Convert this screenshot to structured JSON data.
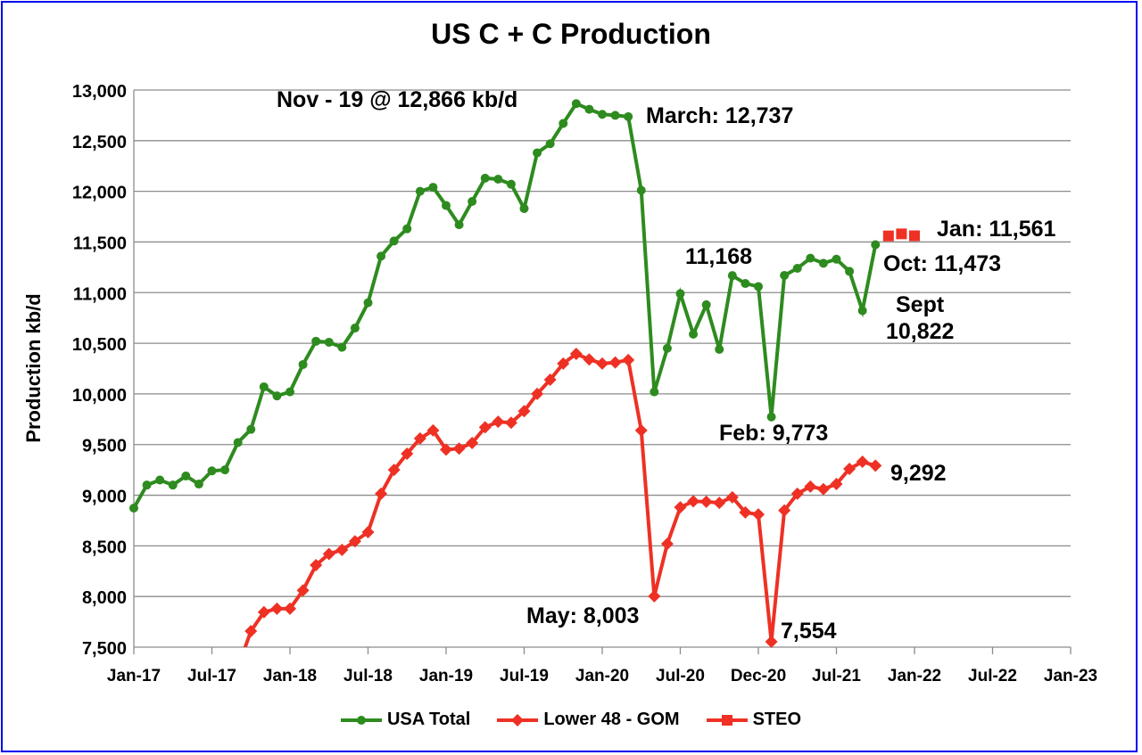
{
  "chart_data": {
    "type": "line",
    "title": "US C + C Production",
    "ylabel": "Production kb/d",
    "xlabel": "",
    "ylim": [
      7500,
      13000
    ],
    "yticks": [
      7500,
      8000,
      8500,
      9000,
      9500,
      10000,
      10500,
      11000,
      11500,
      12000,
      12500,
      13000
    ],
    "ytick_labels": [
      "7,500",
      "8,000",
      "8,500",
      "9,000",
      "9,500",
      "10,000",
      "10,500",
      "11,000",
      "11,500",
      "12,000",
      "12,500",
      "13,000"
    ],
    "xlim": [
      "2017-01",
      "2023-01"
    ],
    "xtick_labels": [
      "Jan-17",
      "Jul-17",
      "Jan-18",
      "Jul-18",
      "Jan-19",
      "Jul-19",
      "Jan-20",
      "Jul-20",
      "Dec-20",
      "Jul-21",
      "Jan-22",
      "Jul-22",
      "Jan-23"
    ],
    "grid": "horizontal",
    "legend_position": "bottom",
    "series": [
      {
        "name": "USA Total",
        "color": "#2e8b1f",
        "marker": "circle",
        "start": "2017-01",
        "values": [
          8873,
          9100,
          9150,
          9100,
          9190,
          9110,
          9240,
          9250,
          9520,
          9650,
          10070,
          9980,
          10020,
          10290,
          10520,
          10510,
          10460,
          10650,
          10900,
          11360,
          11510,
          11630,
          12000,
          12040,
          11860,
          11670,
          11900,
          12130,
          12120,
          12070,
          11830,
          12380,
          12470,
          12670,
          12866,
          12810,
          12760,
          12750,
          12737,
          12010,
          10020,
          10450,
          10990,
          10590,
          10880,
          10440,
          11168,
          11090,
          11060,
          9773,
          11170,
          11240,
          11340,
          11290,
          11330,
          11210,
          10822,
          11473
        ]
      },
      {
        "name": "Lower 48 - GOM",
        "color": "#ee3124",
        "marker": "diamond",
        "start": "2017-09",
        "values": [
          7300,
          7658,
          7845,
          7880,
          7880,
          8060,
          8310,
          8420,
          8460,
          8545,
          8635,
          9015,
          9250,
          9410,
          9560,
          9640,
          9450,
          9460,
          9515,
          9670,
          9725,
          9715,
          9830,
          10000,
          10140,
          10300,
          10395,
          10340,
          10300,
          10310,
          10335,
          9640,
          8003,
          8520,
          8880,
          8940,
          8935,
          8925,
          8980,
          8830,
          8810,
          7554,
          8850,
          9015,
          9085,
          9060,
          9110,
          9260,
          9330,
          9292
        ]
      },
      {
        "name": "STEO",
        "color": "#ee3124",
        "marker": "square",
        "start": "2021-11",
        "values": [
          11560,
          11580,
          11561
        ]
      }
    ],
    "annotations": {
      "peak": "Nov - 19 @ 12,866 kb/d",
      "march": "March: 12,737",
      "jan": "Jan: 11,561",
      "oct": "Oct: 11,473",
      "nov20": "11,168",
      "sept_1": "Sept",
      "sept_2": "10,822",
      "feb": "Feb: 9,773",
      "l48_last": "9,292",
      "may": "May: 8,003",
      "l48_feb": "7,554"
    }
  }
}
